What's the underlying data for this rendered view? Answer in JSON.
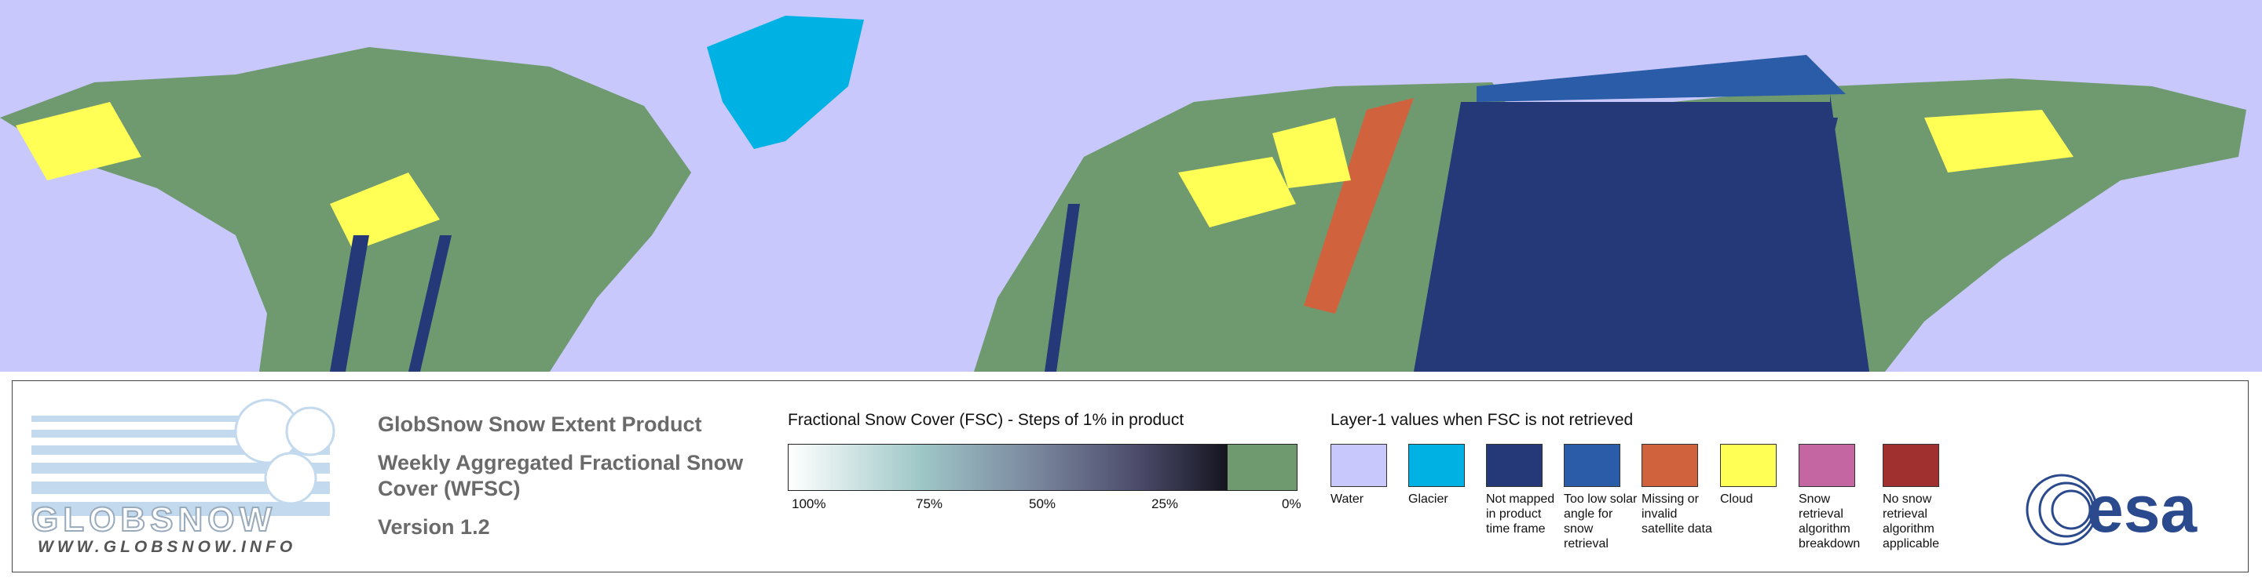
{
  "logo": {
    "wordmark": "GLOBSNOW",
    "url": "WWW.GLOBSNOW.INFO"
  },
  "header": {
    "title": "GlobSnow Snow Extent Product",
    "subtitle": "Weekly Aggregated Fractional Snow Cover (WFSC)",
    "version": "Version 1.2"
  },
  "colorbar": {
    "title": "Fractional Snow Cover (FSC) - Steps of 1% in product",
    "ticks": [
      "100%",
      "75%",
      "50%",
      "25%",
      "0%"
    ]
  },
  "layer1": {
    "title": "Layer-1 values when FSC is not retrieved",
    "items": [
      {
        "label": "Water",
        "color": "#c8c8fc"
      },
      {
        "label": "Glacier",
        "color": "#00b2e4"
      },
      {
        "label": "Not mapped in product time frame",
        "color": "#253878"
      },
      {
        "label": "Too low solar angle for snow retrieval",
        "color": "#2b5ca8"
      },
      {
        "label": "Missing or invalid satellite data",
        "color": "#d0633e"
      },
      {
        "label": "Cloud",
        "color": "#ffff55"
      },
      {
        "label": "Snow retrieval algorithm breakdown",
        "color": "#c366a2"
      },
      {
        "label": "No snow retrieval algorithm applicable",
        "color": "#a0302f"
      }
    ]
  },
  "agency": {
    "name": "esa"
  }
}
